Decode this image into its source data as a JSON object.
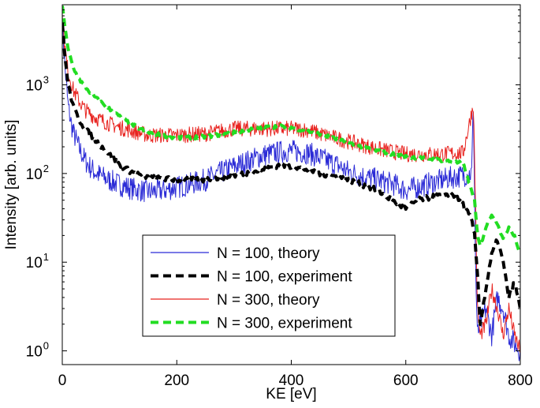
{
  "chart_data": {
    "type": "line",
    "xlabel": "KE [eV]",
    "ylabel": "Intensity [arb. units]",
    "xlim": [
      0,
      800
    ],
    "ylim": [
      0.7,
      8000
    ],
    "yscale": "log",
    "grid": false,
    "legend_position": "lower-center",
    "x_ticks": [
      {
        "value": 0,
        "label": "0"
      },
      {
        "value": 200,
        "label": "200"
      },
      {
        "value": 400,
        "label": "400"
      },
      {
        "value": 600,
        "label": "600"
      },
      {
        "value": 800,
        "label": "800"
      }
    ],
    "y_ticks": [
      {
        "value": 1,
        "base": "10",
        "exp": "0"
      },
      {
        "value": 10,
        "base": "10",
        "exp": "1"
      },
      {
        "value": 100,
        "base": "10",
        "exp": "2"
      },
      {
        "value": 1000,
        "base": "10",
        "exp": "3"
      }
    ],
    "series": [
      {
        "name": "N = 100, theory",
        "color": "#2b2bd6",
        "style": "solid",
        "noise": 0.13,
        "x": [
          0,
          5,
          10,
          15,
          20,
          30,
          40,
          50,
          60,
          80,
          100,
          120,
          150,
          180,
          200,
          220,
          250,
          300,
          350,
          380,
          400,
          430,
          450,
          480,
          500,
          520,
          550,
          580,
          600,
          620,
          650,
          680,
          700,
          715,
          718,
          722,
          725,
          730,
          740,
          750,
          760,
          770,
          780,
          790,
          800
        ],
        "y": [
          5000,
          1500,
          600,
          380,
          280,
          190,
          140,
          115,
          100,
          85,
          75,
          68,
          62,
          65,
          70,
          75,
          85,
          120,
          160,
          175,
          180,
          170,
          150,
          125,
          105,
          95,
          85,
          75,
          65,
          70,
          80,
          90,
          95,
          100,
          600,
          8,
          1.5,
          2,
          3,
          1.5,
          4,
          3,
          1.5,
          1.2,
          1
        ]
      },
      {
        "name": "N = 100, experiment",
        "color": "#000000",
        "style": "dashed",
        "noise": 0.03,
        "x": [
          0,
          5,
          10,
          20,
          30,
          40,
          50,
          60,
          80,
          100,
          120,
          150,
          200,
          250,
          300,
          350,
          380,
          400,
          430,
          450,
          470,
          500,
          550,
          580,
          600,
          620,
          650,
          680,
          700,
          715,
          720,
          725,
          730,
          740,
          750,
          760,
          770,
          780,
          790,
          800
        ],
        "y": [
          5000,
          2000,
          1000,
          550,
          400,
          320,
          270,
          230,
          170,
          125,
          105,
          90,
          85,
          85,
          95,
          110,
          125,
          120,
          110,
          100,
          95,
          85,
          65,
          48,
          40,
          50,
          55,
          60,
          45,
          30,
          20,
          8,
          2,
          5,
          12,
          18,
          10,
          4,
          6,
          3
        ]
      },
      {
        "name": "N = 300, theory",
        "color": "#e8231f",
        "style": "solid",
        "noise": 0.09,
        "x": [
          0,
          5,
          10,
          20,
          30,
          40,
          60,
          80,
          100,
          150,
          200,
          250,
          300,
          350,
          400,
          430,
          450,
          500,
          550,
          600,
          650,
          700,
          718,
          722,
          725,
          730,
          740,
          750,
          760,
          770,
          780,
          790,
          800
        ],
        "y": [
          6000,
          2500,
          1400,
          850,
          650,
          520,
          420,
          370,
          330,
          270,
          270,
          280,
          320,
          320,
          320,
          310,
          280,
          230,
          190,
          165,
          165,
          170,
          600,
          40,
          3,
          1.5,
          2,
          5,
          3,
          1.5,
          3,
          1.5,
          1
        ]
      },
      {
        "name": "N = 300, experiment",
        "color": "#22dd22",
        "style": "dashed",
        "noise": 0.02,
        "x": [
          0,
          5,
          10,
          20,
          30,
          40,
          50,
          60,
          80,
          100,
          120,
          150,
          200,
          250,
          300,
          350,
          380,
          400,
          450,
          500,
          550,
          600,
          650,
          700,
          720,
          725,
          730,
          740,
          750,
          760,
          770,
          780,
          790,
          800
        ],
        "y": [
          7500,
          4500,
          2500,
          1500,
          1150,
          950,
          800,
          700,
          550,
          440,
          360,
          290,
          250,
          260,
          290,
          330,
          340,
          330,
          280,
          220,
          180,
          155,
          145,
          130,
          50,
          20,
          15,
          25,
          35,
          28,
          18,
          25,
          20,
          12
        ]
      }
    ]
  }
}
